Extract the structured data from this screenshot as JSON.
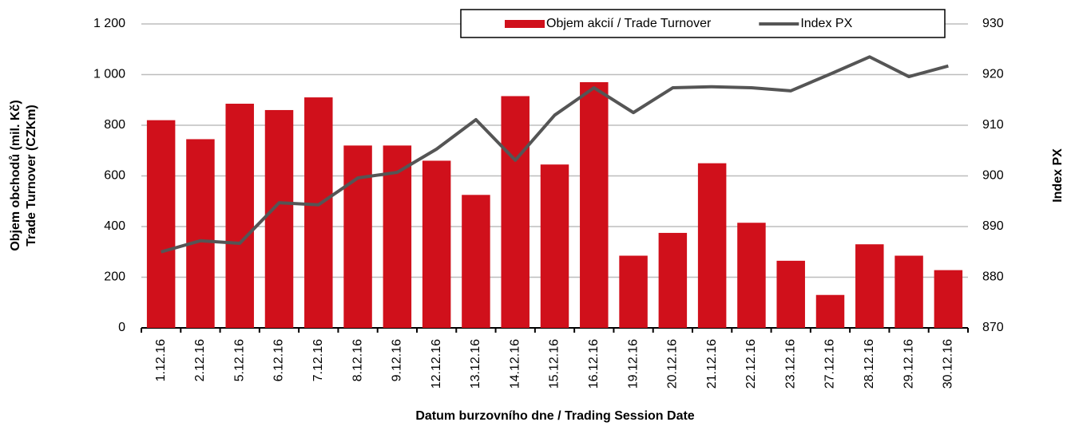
{
  "chart_data": {
    "type": "bar-line",
    "categories": [
      "1.12.16",
      "2.12.16",
      "5.12.16",
      "6.12.16",
      "7.12.16",
      "8.12.16",
      "9.12.16",
      "12.12.16",
      "13.12.16",
      "14.12.16",
      "15.12.16",
      "16.12.16",
      "19.12.16",
      "20.12.16",
      "21.12.16",
      "22.12.16",
      "23.12.16",
      "27.12.16",
      "28.12.16",
      "29.12.16",
      "30.12.16"
    ],
    "series": [
      {
        "name": "Objem akcií / Trade Turnover",
        "type": "bar",
        "color": "#d0101b",
        "values": [
          820,
          745,
          885,
          860,
          910,
          720,
          720,
          660,
          525,
          915,
          645,
          970,
          285,
          375,
          650,
          415,
          265,
          130,
          330,
          285,
          228
        ]
      },
      {
        "name": "Index PX",
        "type": "line",
        "axis": "y2",
        "color": "#555555",
        "values": [
          885.0,
          887.2,
          886.7,
          894.7,
          894.3,
          899.6,
          900.7,
          905.3,
          911.1,
          903.1,
          912.0,
          917.4,
          912.5,
          917.4,
          917.6,
          917.4,
          916.8,
          920.1,
          923.5,
          919.6,
          921.7
        ]
      }
    ],
    "xlabel": "Datum burzovního dne / Trading Session Date",
    "ylabel": [
      "Objem obchodů (mil. Kč)",
      "Trade Turnover (CZKm)"
    ],
    "y2label": "Index PX",
    "ylim": [
      0,
      1200
    ],
    "yticks": [
      0,
      200,
      400,
      600,
      800,
      {
        "value": 1000,
        "label": "1 000"
      },
      {
        "value": 1200,
        "label": "1 200"
      }
    ],
    "y2lim": [
      870,
      930
    ],
    "y2ticks": [
      870,
      880,
      890,
      900,
      910,
      920,
      930
    ],
    "grid": true,
    "legend": "top"
  }
}
